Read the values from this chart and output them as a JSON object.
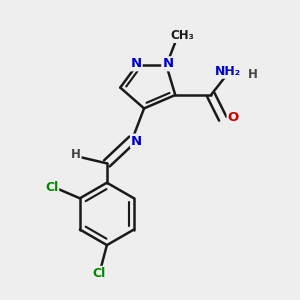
{
  "background_color": "#eeeeee",
  "bond_color": "#1a1a1a",
  "bond_width": 1.8,
  "atom_colors": {
    "N": "#0000cc",
    "O": "#cc0000",
    "Cl": "#008800",
    "C": "#1a1a1a",
    "H": "#444444"
  },
  "figsize": [
    3.0,
    3.0
  ],
  "dpi": 100
}
